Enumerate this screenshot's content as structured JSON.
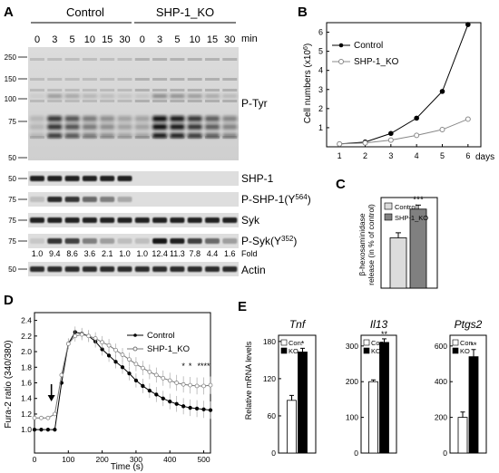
{
  "panels": {
    "A": {
      "letter": "A",
      "groups": [
        "Control",
        "SHP-1_KO"
      ],
      "times": [
        "0",
        "3",
        "5",
        "10",
        "15",
        "30",
        "0",
        "3",
        "5",
        "10",
        "15",
        "30"
      ],
      "time_unit": "min",
      "mw_ptyr": [
        "250",
        "150",
        "100",
        "75",
        "50"
      ],
      "mw_strip": [
        "50",
        "75",
        "75",
        "75",
        "50"
      ],
      "strip_labels": [
        "SHP-1",
        "P-SHP-1(Y564)",
        "Syk",
        "P-Syk(Y352)",
        "Actin"
      ],
      "ptyr_label": "P-Tyr",
      "fold_values": [
        "1.0",
        "9.4",
        "8.6",
        "3.6",
        "2.1",
        "1.0",
        "1.0",
        "12.4",
        "11.3",
        "7.8",
        "4.4",
        "1.6"
      ],
      "fold_label": "Fold"
    },
    "B": {
      "letter": "B",
      "ylabel": "Cell numbers (x10^6)",
      "xlabel_unit": "days"
    },
    "C": {
      "letter": "C",
      "ylabel": "β-hexosaminidase release (in % of control)",
      "sig": "***"
    },
    "D": {
      "letter": "D",
      "ylabel": "Fura-2 ratio (340/380)",
      "xlabel": "Time (s)",
      "sig_marks": [
        "*",
        "*",
        "****"
      ]
    },
    "E": {
      "letter": "E",
      "ylabel": "Relative mRNA levels",
      "genes": [
        "Tnf",
        "Il13",
        "Ptgs2"
      ],
      "legend": [
        "Con.",
        "KO"
      ],
      "sig": [
        "*",
        "**",
        "**"
      ]
    }
  },
  "chart_data": [
    {
      "type": "line",
      "panel": "B",
      "x": [
        1,
        2,
        3,
        4,
        5,
        6
      ],
      "xlim": [
        0.5,
        6.5
      ],
      "ylim": [
        0,
        6.5
      ],
      "xticks": [
        "1",
        "2",
        "3",
        "4",
        "5",
        "6"
      ],
      "yticks": [
        "1",
        "2",
        "3",
        "4",
        "5",
        "6"
      ],
      "series": [
        {
          "name": "Control",
          "values": [
            0.15,
            0.25,
            0.7,
            1.5,
            2.9,
            6.4
          ]
        },
        {
          "name": "SHP-1_KO",
          "values": [
            0.15,
            0.2,
            0.35,
            0.6,
            0.9,
            1.45
          ]
        }
      ],
      "legend": "top-left"
    },
    {
      "type": "bar",
      "panel": "C",
      "categories": [
        "Control",
        "SHP-1_KO"
      ],
      "values": [
        100,
        157
      ],
      "errors": [
        10,
        8
      ],
      "ylim": [
        0,
        180
      ],
      "legend": "top-left"
    },
    {
      "type": "line",
      "panel": "D",
      "xlim": [
        0,
        520
      ],
      "ylim": [
        0.7,
        2.5
      ],
      "xticks": [
        "0",
        "100",
        "200",
        "300",
        "400",
        "500"
      ],
      "yticks": [
        "1.0",
        "1.2",
        "1.4",
        "1.6",
        "1.8",
        "2.0",
        "2.2",
        "2.4"
      ],
      "x": [
        0,
        20,
        40,
        60,
        80,
        100,
        120,
        140,
        160,
        180,
        200,
        220,
        240,
        260,
        280,
        300,
        320,
        340,
        360,
        380,
        400,
        420,
        440,
        460,
        480,
        500,
        520
      ],
      "series": [
        {
          "name": "Control",
          "values": [
            1.0,
            1.0,
            1.0,
            1.0,
            1.6,
            2.1,
            2.25,
            2.23,
            2.2,
            2.13,
            2.03,
            1.95,
            1.87,
            1.8,
            1.72,
            1.63,
            1.56,
            1.5,
            1.45,
            1.4,
            1.36,
            1.33,
            1.3,
            1.28,
            1.27,
            1.26,
            1.25
          ]
        },
        {
          "name": "SHP-1_KO",
          "values": [
            1.15,
            1.15,
            1.15,
            1.2,
            1.7,
            2.1,
            2.2,
            2.22,
            2.2,
            2.17,
            2.12,
            2.08,
            2.02,
            1.96,
            1.9,
            1.84,
            1.79,
            1.74,
            1.7,
            1.66,
            1.63,
            1.6,
            1.58,
            1.57,
            1.56,
            1.56,
            1.57
          ]
        }
      ],
      "stimulus_x": 50,
      "legend": "top-right"
    },
    {
      "type": "bar",
      "panel": "E",
      "gene": "Tnf",
      "categories": [
        "Con.",
        "KO"
      ],
      "values": [
        85,
        163
      ],
      "errors": [
        8,
        6
      ],
      "ylim": [
        0,
        190
      ],
      "yticks": [
        "0",
        "60",
        "120",
        "180"
      ]
    },
    {
      "type": "bar",
      "panel": "E",
      "gene": "Il13",
      "categories": [
        "Con.",
        "KO"
      ],
      "values": [
        200,
        310
      ],
      "errors": [
        5,
        10
      ],
      "ylim": [
        0,
        330
      ],
      "yticks": [
        "0",
        "100",
        "200",
        "300"
      ]
    },
    {
      "type": "bar",
      "panel": "E",
      "gene": "Ptgs2",
      "categories": [
        "Con.",
        "KO"
      ],
      "values": [
        200,
        540
      ],
      "errors": [
        30,
        40
      ],
      "ylim": [
        0,
        660
      ],
      "yticks": [
        "0",
        "200",
        "400",
        "600"
      ]
    }
  ]
}
